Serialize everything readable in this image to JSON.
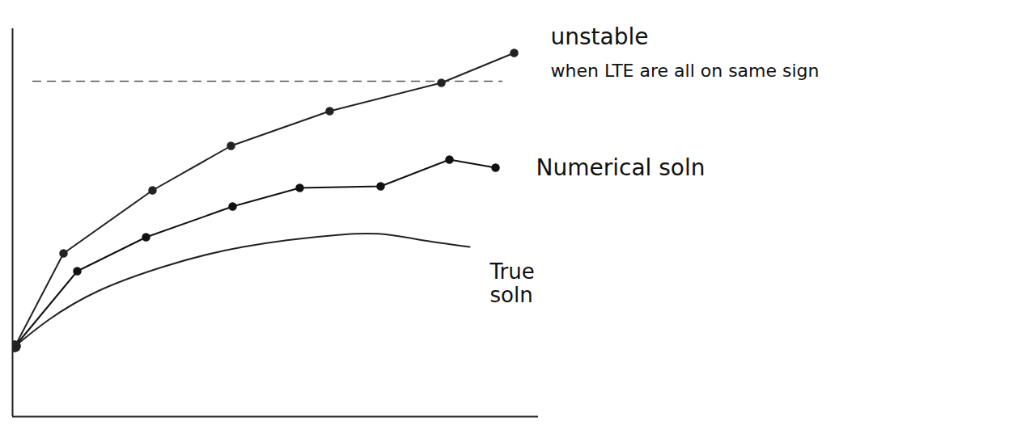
{
  "chart_data": {
    "type": "line",
    "xlim": [
      0,
      650
    ],
    "ylim": [
      0,
      480
    ],
    "xticks": [],
    "yticks": [],
    "tick_labels": false,
    "grid": false,
    "reference_line": {
      "x": [
        25,
        605
      ],
      "y": 415,
      "line_style": "dashed",
      "color": "#555555"
    },
    "series": [
      {
        "name": "True\nsoln",
        "color": "#222222",
        "marker": "none",
        "line_style": "solid",
        "x": [
          3,
          45,
          105,
          185,
          285,
          405,
          465,
          515,
          565
        ],
        "values": [
          87,
          120,
          155,
          185,
          210,
          225,
          225,
          217,
          210
        ]
      },
      {
        "name": "Numerical soln",
        "color": "#111111",
        "marker": "circle",
        "line_style": "solid",
        "x": [
          3,
          80,
          165,
          272,
          355,
          455,
          540,
          597
        ],
        "values": [
          87,
          180,
          222,
          260,
          283,
          285,
          318,
          308
        ]
      },
      {
        "name": "unstable",
        "color": "#222222",
        "marker": "circle",
        "line_style": "solid",
        "annotation": "when LTE are all on same sign",
        "x": [
          3,
          63,
          173,
          270,
          392,
          530,
          620
        ],
        "values": [
          87,
          202,
          280,
          335,
          378,
          413,
          450
        ]
      }
    ]
  }
}
